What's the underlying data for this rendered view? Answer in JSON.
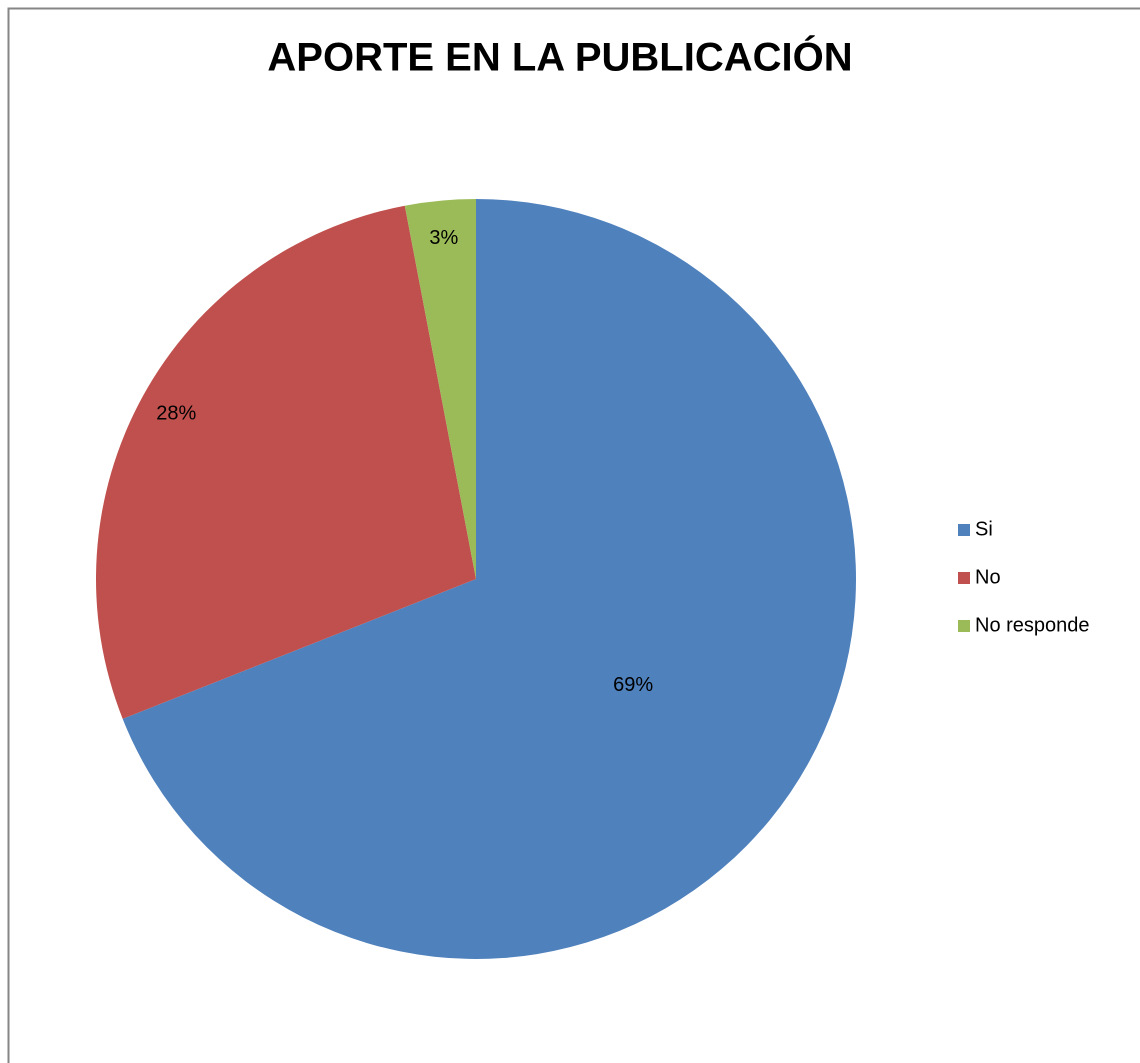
{
  "chart_data": {
    "type": "pie",
    "title": "APORTE EN LA PUBLICACIÓN",
    "categories": [
      "Si",
      "No",
      "No responde"
    ],
    "values": [
      69,
      28,
      3
    ],
    "value_labels": [
      "69%",
      "28%",
      "3%"
    ],
    "colors": [
      "#4f81bd",
      "#c0504d",
      "#9bbb59"
    ],
    "legend": "right"
  }
}
